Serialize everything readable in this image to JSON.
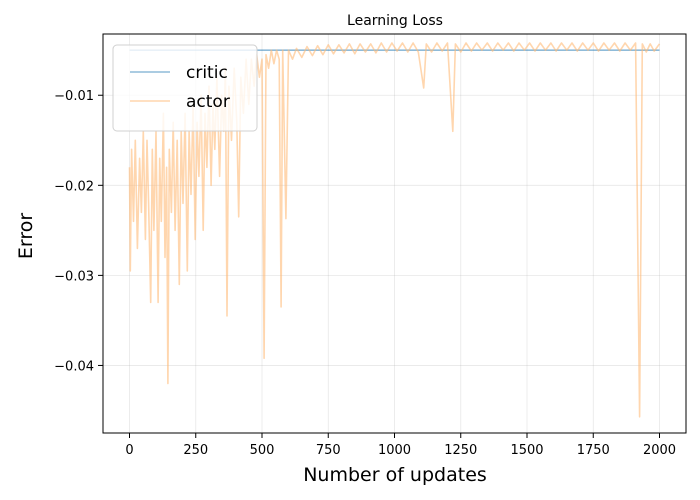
{
  "chart_data": {
    "type": "line",
    "title": "Learning Loss",
    "xlabel": "Number of updates",
    "ylabel": "Error",
    "xlim": [
      -100,
      2100
    ],
    "ylim": [
      -0.0475,
      -0.0032
    ],
    "xticks": [
      0,
      250,
      500,
      750,
      1000,
      1250,
      1500,
      1750,
      2000
    ],
    "xtick_labels": [
      "0",
      "250",
      "500",
      "750",
      "1000",
      "1250",
      "1500",
      "1750",
      "2000"
    ],
    "yticks": [
      -0.01,
      -0.02,
      -0.03,
      -0.04
    ],
    "ytick_labels": [
      "−0.01",
      "−0.02",
      "−0.03",
      "−0.04"
    ],
    "grid": true,
    "legend": "top-left",
    "series": [
      {
        "name": "critic",
        "color": "#1f77b4",
        "opacity": 0.5,
        "points": [
          [
            0,
            -0.005
          ],
          [
            2000,
            -0.005
          ]
        ]
      },
      {
        "name": "actor",
        "color": "#ffbb78",
        "opacity": 0.6,
        "points": [
          [
            0,
            -0.018
          ],
          [
            3,
            -0.0295
          ],
          [
            8,
            -0.016
          ],
          [
            15,
            -0.024
          ],
          [
            22,
            -0.015
          ],
          [
            30,
            -0.027
          ],
          [
            38,
            -0.017
          ],
          [
            45,
            -0.023
          ],
          [
            52,
            -0.014
          ],
          [
            60,
            -0.026
          ],
          [
            66,
            -0.015
          ],
          [
            72,
            -0.022
          ],
          [
            80,
            -0.033
          ],
          [
            86,
            -0.016
          ],
          [
            92,
            -0.025
          ],
          [
            100,
            -0.014
          ],
          [
            108,
            -0.033
          ],
          [
            114,
            -0.017
          ],
          [
            120,
            -0.024
          ],
          [
            128,
            -0.012
          ],
          [
            134,
            -0.028
          ],
          [
            140,
            -0.018
          ],
          [
            145,
            -0.042
          ],
          [
            150,
            -0.016
          ],
          [
            158,
            -0.023
          ],
          [
            165,
            -0.013
          ],
          [
            172,
            -0.025
          ],
          [
            180,
            -0.015
          ],
          [
            188,
            -0.031
          ],
          [
            195,
            -0.014
          ],
          [
            202,
            -0.022
          ],
          [
            210,
            -0.012
          ],
          [
            218,
            -0.0295
          ],
          [
            225,
            -0.014
          ],
          [
            232,
            -0.021
          ],
          [
            240,
            -0.011
          ],
          [
            248,
            -0.026
          ],
          [
            255,
            -0.013
          ],
          [
            262,
            -0.019
          ],
          [
            270,
            -0.01
          ],
          [
            278,
            -0.025
          ],
          [
            285,
            -0.012
          ],
          [
            292,
            -0.018
          ],
          [
            300,
            -0.009
          ],
          [
            308,
            -0.02
          ],
          [
            315,
            -0.011
          ],
          [
            322,
            -0.016
          ],
          [
            330,
            -0.008
          ],
          [
            340,
            -0.019
          ],
          [
            348,
            -0.01
          ],
          [
            356,
            -0.014
          ],
          [
            362,
            -0.007
          ],
          [
            368,
            -0.0345
          ],
          [
            375,
            -0.009
          ],
          [
            385,
            -0.015
          ],
          [
            395,
            -0.007
          ],
          [
            405,
            -0.013
          ],
          [
            412,
            -0.0235
          ],
          [
            420,
            -0.008
          ],
          [
            430,
            -0.012
          ],
          [
            440,
            -0.006
          ],
          [
            450,
            -0.011
          ],
          [
            460,
            -0.006
          ],
          [
            470,
            -0.009
          ],
          [
            480,
            -0.0055
          ],
          [
            490,
            -0.008
          ],
          [
            500,
            -0.006
          ],
          [
            508,
            -0.0392
          ],
          [
            515,
            -0.0055
          ],
          [
            525,
            -0.007
          ],
          [
            535,
            -0.005
          ],
          [
            545,
            -0.0065
          ],
          [
            555,
            -0.005
          ],
          [
            565,
            -0.006
          ],
          [
            572,
            -0.0335
          ],
          [
            578,
            -0.005
          ],
          [
            590,
            -0.0237
          ],
          [
            600,
            -0.005
          ],
          [
            615,
            -0.006
          ],
          [
            630,
            -0.0048
          ],
          [
            650,
            -0.0058
          ],
          [
            670,
            -0.0046
          ],
          [
            690,
            -0.0056
          ],
          [
            710,
            -0.0045
          ],
          [
            730,
            -0.0055
          ],
          [
            750,
            -0.0044
          ],
          [
            770,
            -0.0054
          ],
          [
            790,
            -0.0044
          ],
          [
            810,
            -0.0053
          ],
          [
            830,
            -0.0043
          ],
          [
            850,
            -0.0054
          ],
          [
            870,
            -0.0043
          ],
          [
            890,
            -0.0052
          ],
          [
            910,
            -0.0043
          ],
          [
            930,
            -0.0053
          ],
          [
            950,
            -0.0042
          ],
          [
            970,
            -0.0052
          ],
          [
            990,
            -0.0042
          ],
          [
            1010,
            -0.0051
          ],
          [
            1030,
            -0.0042
          ],
          [
            1050,
            -0.0052
          ],
          [
            1070,
            -0.0042
          ],
          [
            1090,
            -0.0052
          ],
          [
            1110,
            -0.0092
          ],
          [
            1120,
            -0.0043
          ],
          [
            1140,
            -0.0052
          ],
          [
            1160,
            -0.0042
          ],
          [
            1180,
            -0.0051
          ],
          [
            1200,
            -0.0042
          ],
          [
            1220,
            -0.014
          ],
          [
            1230,
            -0.0043
          ],
          [
            1250,
            -0.0052
          ],
          [
            1270,
            -0.0042
          ],
          [
            1290,
            -0.0051
          ],
          [
            1310,
            -0.0042
          ],
          [
            1330,
            -0.005
          ],
          [
            1350,
            -0.0042
          ],
          [
            1370,
            -0.0051
          ],
          [
            1390,
            -0.0042
          ],
          [
            1410,
            -0.005
          ],
          [
            1430,
            -0.0042
          ],
          [
            1450,
            -0.0051
          ],
          [
            1470,
            -0.0042
          ],
          [
            1490,
            -0.005
          ],
          [
            1510,
            -0.0042
          ],
          [
            1530,
            -0.0051
          ],
          [
            1550,
            -0.0042
          ],
          [
            1570,
            -0.005
          ],
          [
            1590,
            -0.0042
          ],
          [
            1610,
            -0.0051
          ],
          [
            1630,
            -0.0042
          ],
          [
            1650,
            -0.005
          ],
          [
            1670,
            -0.0042
          ],
          [
            1690,
            -0.0051
          ],
          [
            1710,
            -0.0042
          ],
          [
            1730,
            -0.005
          ],
          [
            1750,
            -0.0042
          ],
          [
            1770,
            -0.0051
          ],
          [
            1790,
            -0.0042
          ],
          [
            1810,
            -0.005
          ],
          [
            1830,
            -0.0042
          ],
          [
            1850,
            -0.0051
          ],
          [
            1870,
            -0.0042
          ],
          [
            1890,
            -0.005
          ],
          [
            1910,
            -0.0042
          ],
          [
            1925,
            -0.0457
          ],
          [
            1935,
            -0.0043
          ],
          [
            1950,
            -0.0052
          ],
          [
            1965,
            -0.0043
          ],
          [
            1980,
            -0.0051
          ],
          [
            2000,
            -0.0043
          ]
        ]
      }
    ]
  }
}
